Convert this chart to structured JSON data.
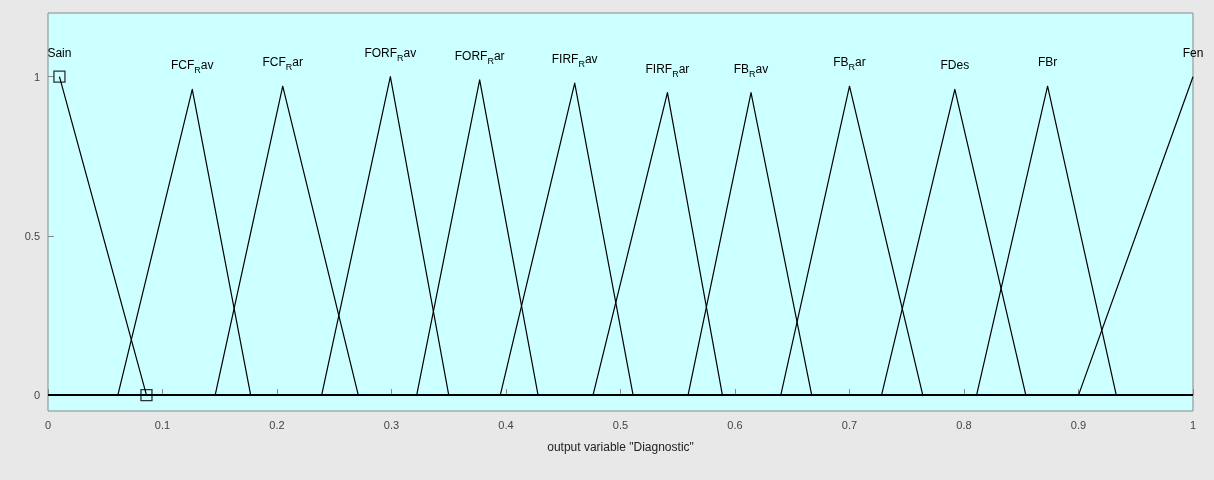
{
  "chart_data": {
    "type": "line",
    "xlabel": "output variable \"Diagnostic\"",
    "xlim": [
      0,
      1
    ],
    "xticks": [
      0,
      0.1,
      0.2,
      0.3,
      0.4,
      0.5,
      0.6,
      0.7,
      0.8,
      0.9,
      1
    ],
    "ylim": [
      -0.05,
      1.2
    ],
    "yticks": [
      0,
      0.5,
      1
    ],
    "grid": false,
    "legend": false,
    "marker": "none",
    "series": [
      {
        "name": "Sain",
        "color": "#000000",
        "x": [
          0.01,
          0.086,
          1
        ],
        "values": [
          1,
          0,
          0
        ]
      },
      {
        "name": "FCF$_{R}$av",
        "color": "#000000",
        "x": [
          0,
          0.061,
          0.126,
          0.177,
          1
        ],
        "values": [
          0,
          0,
          0.96,
          0,
          0
        ]
      },
      {
        "name": "FCF$_{R}$ar",
        "color": "#000000",
        "x": [
          0,
          0.146,
          0.205,
          0.271,
          1
        ],
        "values": [
          0,
          0,
          0.97,
          0,
          0
        ]
      },
      {
        "name": "FORF$_{R}$av",
        "color": "#000000",
        "x": [
          0,
          0.239,
          0.299,
          0.35,
          1
        ],
        "values": [
          0,
          0,
          1,
          0,
          0
        ]
      },
      {
        "name": "FORF$_{R}$ar",
        "color": "#000000",
        "x": [
          0,
          0.322,
          0.377,
          0.428,
          1
        ],
        "values": [
          0,
          0,
          0.99,
          0,
          0
        ]
      },
      {
        "name": "FIRF$_{R}$av",
        "color": "#000000",
        "x": [
          0,
          0.395,
          0.46,
          0.511,
          1
        ],
        "values": [
          0,
          0,
          0.98,
          0,
          0
        ]
      },
      {
        "name": "FIRF$_{R}$ar",
        "color": "#000000",
        "x": [
          0,
          0.476,
          0.541,
          0.589,
          1
        ],
        "values": [
          0,
          0,
          0.95,
          0,
          0
        ]
      },
      {
        "name": "FB$_{R}$av",
        "color": "#000000",
        "x": [
          0,
          0.559,
          0.614,
          0.667,
          1
        ],
        "values": [
          0,
          0,
          0.95,
          0,
          0
        ]
      },
      {
        "name": "FB$_{R}$ar",
        "color": "#000000",
        "x": [
          0,
          0.64,
          0.7,
          0.764,
          1
        ],
        "values": [
          0,
          0,
          0.97,
          0,
          0
        ]
      },
      {
        "name": "FDes",
        "color": "#000000",
        "x": [
          0,
          0.728,
          0.792,
          0.854,
          1
        ],
        "values": [
          0,
          0,
          0.96,
          0,
          0
        ]
      },
      {
        "name": "FBr",
        "color": "#000000",
        "x": [
          0,
          0.811,
          0.873,
          0.933,
          1
        ],
        "values": [
          0,
          0,
          0.97,
          0,
          0
        ]
      },
      {
        "name": "Fen",
        "color": "#000000",
        "x": [
          0,
          0.9,
          1
        ],
        "values": [
          0,
          0,
          1
        ]
      },
      {
        "type": "scatter",
        "marker": "square",
        "color": "#000000",
        "x": [
          0.01,
          0.086
        ],
        "values": [
          1,
          0
        ]
      }
    ]
  }
}
